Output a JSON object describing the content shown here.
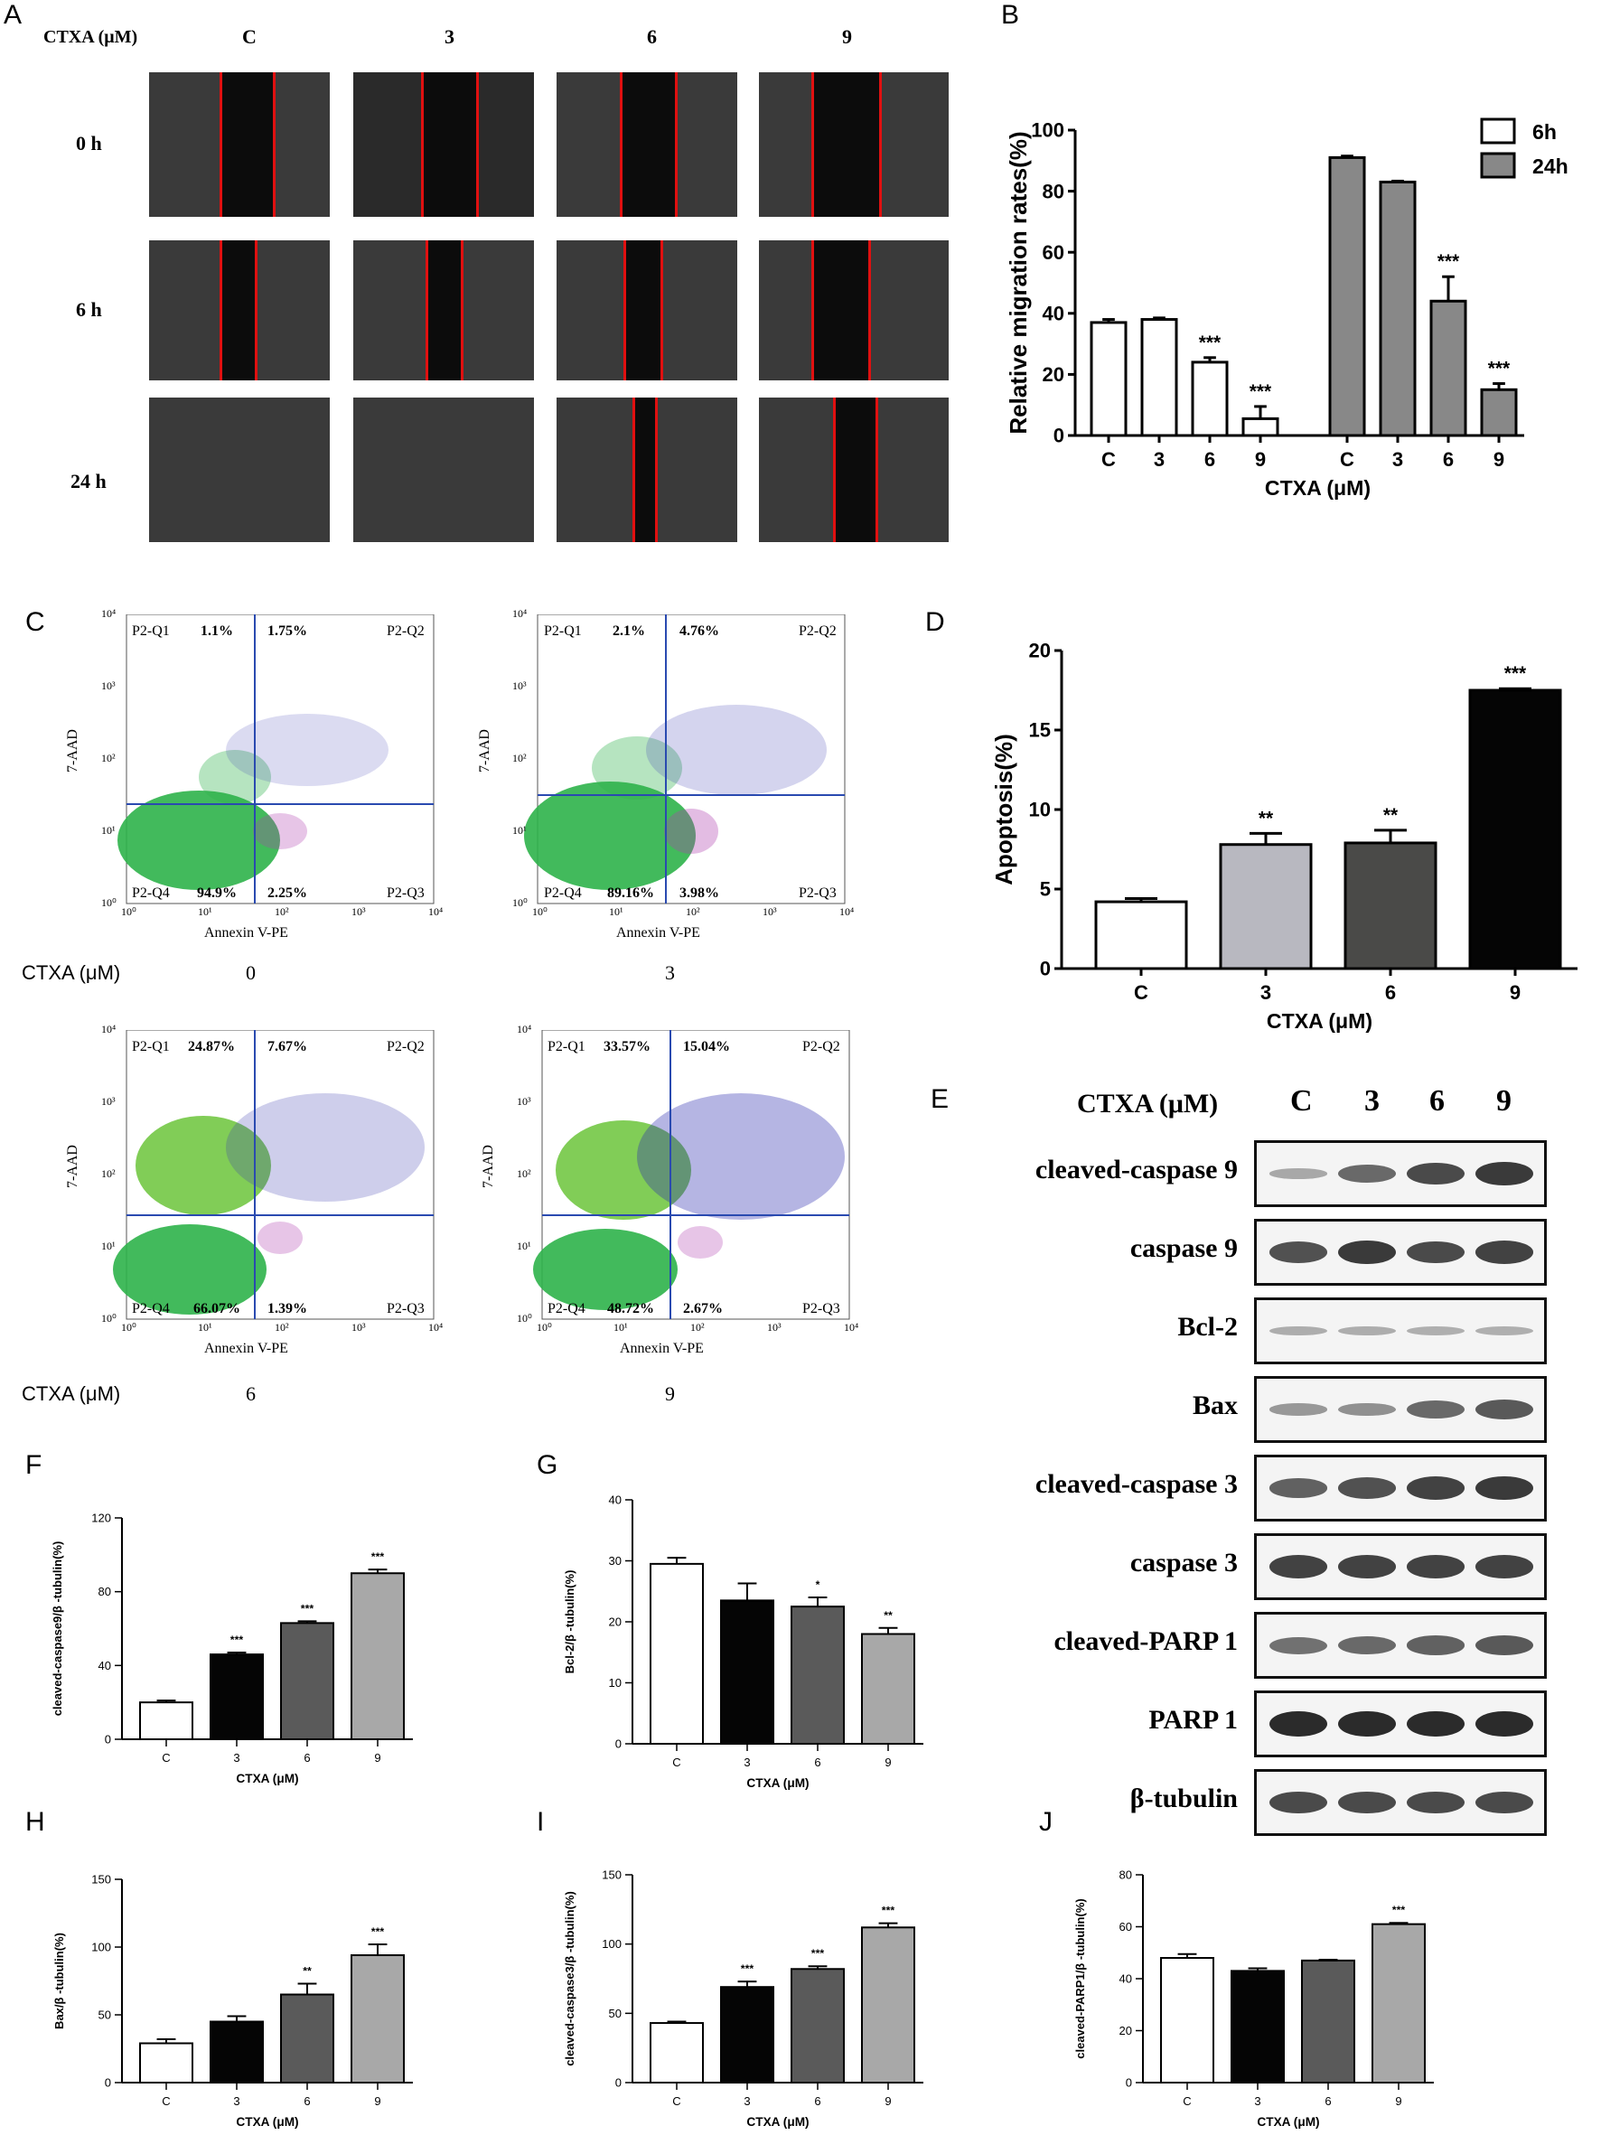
{
  "panels": {
    "A": "A",
    "B": "B",
    "C": "C",
    "D": "D",
    "E": "E",
    "F": "F",
    "G": "G",
    "H": "H",
    "I": "I",
    "J": "J"
  },
  "panelA": {
    "axis_label": "CTXA (μM)",
    "columns": [
      "C",
      "3",
      "6",
      "9"
    ],
    "rows": [
      "0 h",
      "6 h",
      "24 h"
    ]
  },
  "flow": {
    "ctxa_label": "CTXA (μM)",
    "x_axis": "Annexin V-PE",
    "y_axis": "7-AAD",
    "quadrants": [
      "P2-Q1",
      "P2-Q2",
      "P2-Q3",
      "P2-Q4"
    ],
    "ticks": [
      "10⁰",
      "10¹",
      "10²",
      "10³",
      "10⁴"
    ],
    "plots": [
      {
        "dose": "0",
        "q1": "1.1%",
        "q2": "1.75%",
        "q3": "2.25%",
        "q4": "94.9%"
      },
      {
        "dose": "3",
        "q1": "2.1%",
        "q2": "4.76%",
        "q3": "3.98%",
        "q4": "89.16%"
      },
      {
        "dose": "6",
        "q1": "24.87%",
        "q2": "7.67%",
        "q3": "1.39%",
        "q4": "66.07%"
      },
      {
        "dose": "9",
        "q1": "33.57%",
        "q2": "15.04%",
        "q3": "2.67%",
        "q4": "48.72%"
      }
    ]
  },
  "westernE": {
    "header": "CTXA (μM)",
    "lanes": [
      "C",
      "3",
      "6",
      "9"
    ],
    "proteins": [
      "cleaved-caspase 9",
      "caspase 9",
      "Bcl-2",
      "Bax",
      "cleaved-caspase 3",
      "caspase 3",
      "cleaved-PARP 1",
      "PARP 1",
      "β-tubulin"
    ]
  },
  "chart_data": [
    {
      "id": "B",
      "type": "bar",
      "title": "",
      "xlabel": "CTXA (μM)",
      "ylabel": "Relative migration rates(%)",
      "categories": [
        "C",
        "3",
        "6",
        "9"
      ],
      "ylim": [
        0,
        100
      ],
      "yticks": [
        0,
        20,
        40,
        60,
        80,
        100
      ],
      "legend": [
        "6h",
        "24h"
      ],
      "legend_position": "top-right",
      "series": [
        {
          "name": "6h",
          "values": [
            37,
            38,
            24,
            5.5
          ],
          "errors": [
            1,
            0.5,
            1.5,
            4
          ],
          "stars": [
            "",
            "",
            "***",
            "***"
          ]
        },
        {
          "name": "24h",
          "values": [
            91,
            83,
            44,
            15
          ],
          "errors": [
            0.5,
            0.3,
            8,
            2
          ],
          "stars": [
            "",
            "",
            "***",
            "***"
          ]
        }
      ]
    },
    {
      "id": "D",
      "type": "bar",
      "xlabel": "CTXA (μM)",
      "ylabel": "Apoptosis(%)",
      "categories": [
        "C",
        "3",
        "6",
        "9"
      ],
      "ylim": [
        0,
        20
      ],
      "yticks": [
        0,
        5,
        10,
        15,
        20
      ],
      "values": [
        4.2,
        7.8,
        7.9,
        17.5
      ],
      "errors": [
        0.2,
        0.7,
        0.8,
        0.1
      ],
      "stars": [
        "",
        "**",
        "**",
        "***"
      ]
    },
    {
      "id": "F",
      "type": "bar",
      "xlabel": "CTXA (μM)",
      "ylabel": "cleaved-caspase9/β -tubulin(%)",
      "categories": [
        "C",
        "3",
        "6",
        "9"
      ],
      "ylim": [
        0,
        120
      ],
      "yticks": [
        0,
        40,
        80,
        120
      ],
      "values": [
        20,
        46,
        63,
        90
      ],
      "errors": [
        1,
        1,
        1,
        2
      ],
      "stars": [
        "",
        "***",
        "***",
        "***"
      ]
    },
    {
      "id": "G",
      "type": "bar",
      "xlabel": "CTXA (μM)",
      "ylabel": "Bcl-2/β -tubulin(%)",
      "categories": [
        "C",
        "3",
        "6",
        "9"
      ],
      "ylim": [
        0,
        40
      ],
      "yticks": [
        0,
        10,
        20,
        30,
        40
      ],
      "values": [
        29.5,
        23.5,
        22.5,
        18
      ],
      "errors": [
        1,
        2.8,
        1.5,
        1
      ],
      "stars": [
        "",
        "",
        "*",
        "**"
      ]
    },
    {
      "id": "H",
      "type": "bar",
      "xlabel": "CTXA (μM)",
      "ylabel": "Bax/β -tubulin(%)",
      "categories": [
        "C",
        "3",
        "6",
        "9"
      ],
      "ylim": [
        0,
        150
      ],
      "yticks": [
        0,
        50,
        100,
        150
      ],
      "values": [
        29,
        45,
        65,
        94
      ],
      "errors": [
        3,
        4,
        8,
        8
      ],
      "stars": [
        "",
        "",
        "**",
        "***"
      ]
    },
    {
      "id": "I",
      "type": "bar",
      "xlabel": "CTXA (μM)",
      "ylabel": "cleaved-caspase3/β -tubulin(%)",
      "categories": [
        "C",
        "3",
        "6",
        "9"
      ],
      "ylim": [
        0,
        150
      ],
      "yticks": [
        0,
        50,
        100,
        150
      ],
      "values": [
        43,
        69,
        82,
        112
      ],
      "errors": [
        1,
        4,
        2,
        3
      ],
      "stars": [
        "",
        "***",
        "***",
        "***"
      ]
    },
    {
      "id": "J",
      "type": "bar",
      "xlabel": "CTXA (μM)",
      "ylabel": "cleaved-PARP1/β -tubulin(%)",
      "categories": [
        "C",
        "3",
        "6",
        "9"
      ],
      "ylim": [
        0,
        80
      ],
      "yticks": [
        0,
        20,
        40,
        60,
        80
      ],
      "values": [
        48,
        43,
        47,
        61
      ],
      "errors": [
        1.5,
        1,
        0.3,
        0.5
      ],
      "stars": [
        "",
        "",
        "",
        "***"
      ]
    }
  ]
}
